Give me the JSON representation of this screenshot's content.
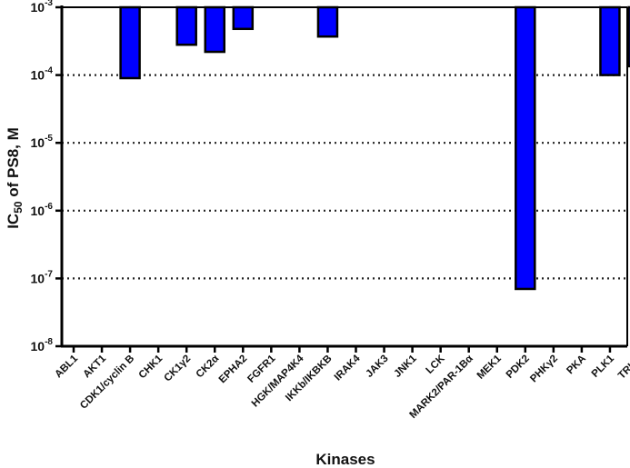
{
  "chart_data": {
    "type": "bar",
    "ylabel_main": "IC",
    "ylabel_sub": "50",
    "ylabel_rest": " of PS8, M",
    "xlabel": "Kinases",
    "yscale": "log",
    "ylim": [
      1e-08,
      0.001
    ],
    "grid": "horizontal-dotted",
    "bar_color": "#0000ff",
    "highlight_color": "#ee1111",
    "yticks": [
      {
        "base": "10",
        "exp": "-8"
      },
      {
        "base": "10",
        "exp": "-7"
      },
      {
        "base": "10",
        "exp": "-6"
      },
      {
        "base": "10",
        "exp": "-5"
      },
      {
        "base": "10",
        "exp": "-4"
      },
      {
        "base": "10",
        "exp": "-3"
      }
    ],
    "categories": [
      "ABL1",
      "AKT1",
      "CDK1/cyclin B",
      "CHK1",
      "CK1γ2",
      "CK2α",
      "EPHA2",
      "FGFR1",
      "HGK/MAP4K4",
      "IKKb/IKBKB",
      "IRAK4",
      "JAK3",
      "JNK1",
      "LCK",
      "MARK2/PAR-1Bα",
      "MEK1",
      "PDK2",
      "PHKγ2",
      "PKA",
      "PLK1",
      "TRKA"
    ],
    "highlight": "PDK2",
    "values": [
      null,
      null,
      9e-05,
      null,
      0.00028,
      0.00022,
      0.00048,
      null,
      null,
      0.00037,
      null,
      null,
      null,
      null,
      null,
      null,
      7e-08,
      null,
      null,
      0.0001,
      0.000135
    ]
  }
}
